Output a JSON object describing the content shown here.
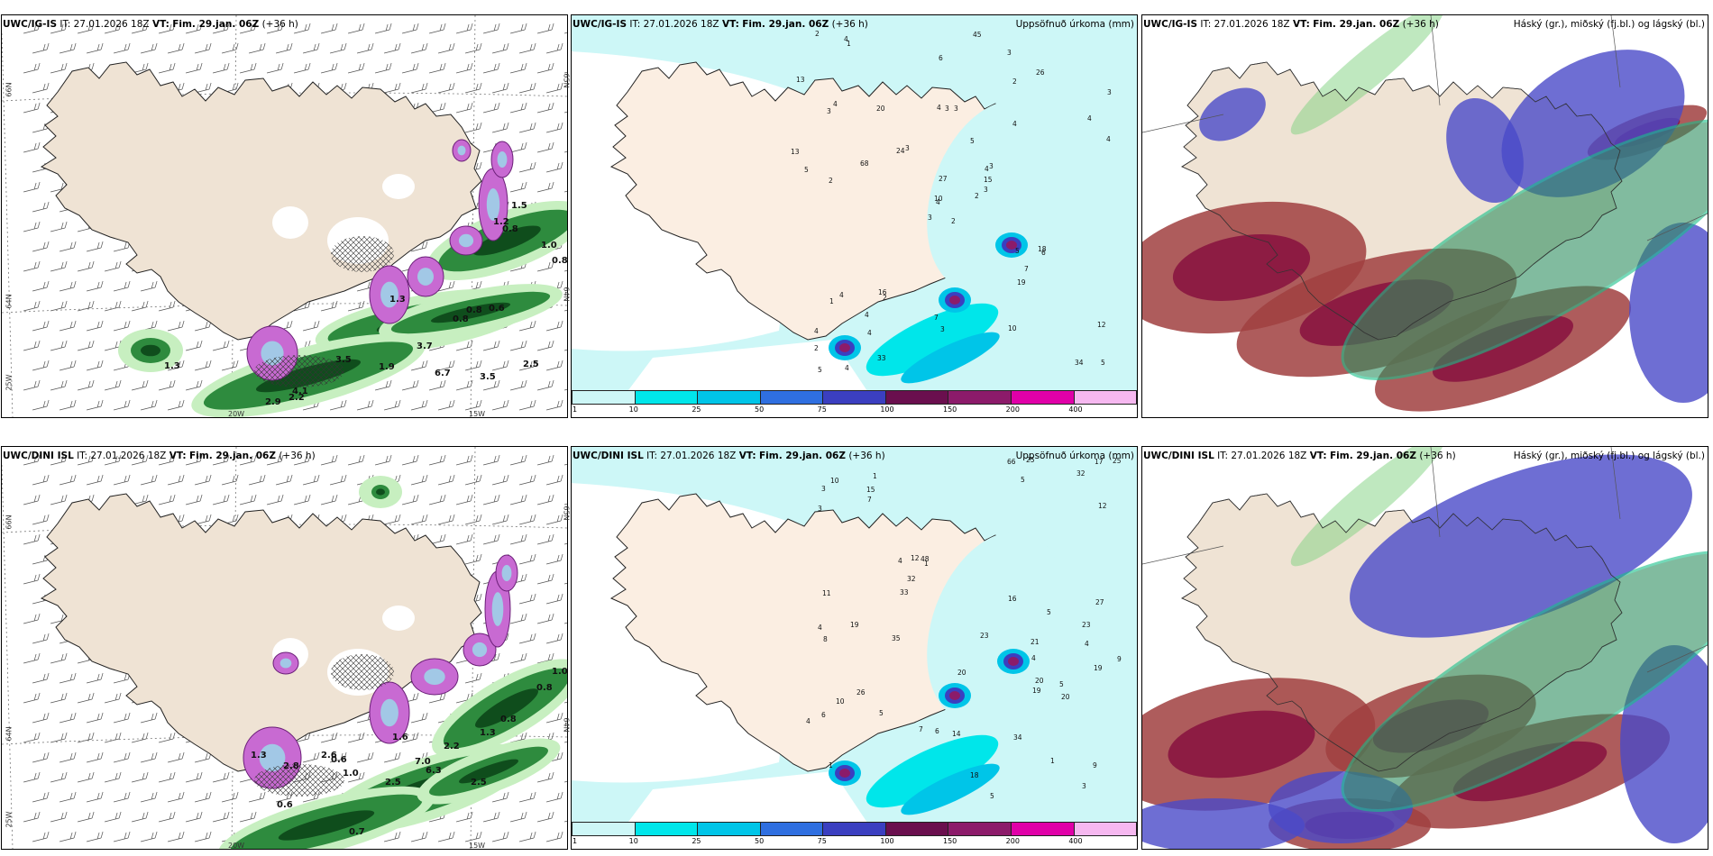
{
  "header_top_left": {
    "model": "UWC/IG-IS",
    "it": "IT: 27.01.2026 18Z",
    "vt_label": "VT:",
    "vt_value": "Fim. 29.jan. 06Z",
    "lead": "(+36 h)"
  },
  "header_top_mid": {
    "model": "UWC/IG-IS",
    "it": "IT: 27.01.2026 18Z",
    "vt_label": "VT:",
    "vt_value": "Fim. 29.jan. 06Z",
    "lead": "(+36 h)",
    "right": "Uppsöfnuð úrkoma (mm)"
  },
  "header_top_right": {
    "model": "UWC/IG-IS",
    "it": "IT: 27.01.2026 18Z",
    "vt_label": "VT:",
    "vt_value": "Fim. 29.jan. 06Z",
    "lead": "(+36 h)",
    "right": "Háský (gr.), miðský (fj.bl.) og lágský (bl.)"
  },
  "header_bot_left": {
    "model": "UWC/DINI ISL",
    "it": "IT: 27.01.2026 18Z",
    "vt_label": "VT:",
    "vt_value": "Fim. 29.jan. 06Z",
    "lead": "(+36 h)"
  },
  "header_bot_mid": {
    "model": "UWC/DINI ISL",
    "it": "IT: 27.01.2026 18Z",
    "vt_label": "VT:",
    "vt_value": "Fim. 29.jan. 06Z",
    "lead": "(+36 h)",
    "right": "Uppsöfnuð úrkoma (mm)"
  },
  "header_bot_right": {
    "model": "UWC/DINI ISL",
    "it": "IT: 27.01.2026 18Z",
    "vt_label": "VT:",
    "vt_value": "Fim. 29.jan. 06Z",
    "lead": "(+36 h)",
    "right": "Háský (gr.), miðský (fj.bl.) og lágský (bl.)"
  },
  "axis_labels": {
    "lat66": "66N",
    "lat64": "64N",
    "lon25": "25W",
    "lon20": "20W",
    "lon15": "15W",
    "lat65": "65N"
  },
  "legend": {
    "ticks": [
      "1",
      "10",
      "25",
      "50",
      "75",
      "100",
      "150",
      "200",
      "400"
    ],
    "colors": [
      "#cdf7f7",
      "#00e6ea",
      "#00c5e8",
      "#2f6fe0",
      "#3b3fc0",
      "#6a0f4e",
      "#8c1b6a",
      "#e000a8",
      "#f6b8f0"
    ]
  },
  "precip_top": [
    "2",
    "3",
    "4",
    "4",
    "4",
    "2",
    "3",
    "3",
    "2",
    "2",
    "1",
    "5",
    "2",
    "3",
    "3",
    "4",
    "4",
    "4",
    "5",
    "4",
    "3",
    "2",
    "4",
    "3",
    "3",
    "6",
    "4",
    "6",
    "5",
    "5",
    "4",
    "10",
    "7",
    "27",
    "20",
    "26",
    "16",
    "34",
    "12",
    "18",
    "45",
    "24",
    "68",
    "19",
    "33",
    "13",
    "15",
    "5",
    "3",
    "3",
    "1",
    "4",
    "13",
    "7",
    "10",
    "4",
    "4",
    "2"
  ],
  "precip_bot": [
    "4",
    "4",
    "1",
    "1",
    "1",
    "1",
    "6",
    "5",
    "4",
    "5",
    "3",
    "4",
    "3",
    "9",
    "7",
    "27",
    "20",
    "23",
    "48",
    "26",
    "25",
    "32",
    "33",
    "19",
    "66",
    "15",
    "20",
    "8",
    "7",
    "5",
    "18",
    "34",
    "32",
    "35",
    "23",
    "20",
    "19",
    "19",
    "14",
    "10",
    "12",
    "25",
    "3",
    "6",
    "5",
    "5",
    "4",
    "10",
    "16",
    "11",
    "9",
    "12",
    "17",
    "21"
  ],
  "dpm_top": [
    "1.5",
    "0.8",
    "1.0",
    "0.8",
    "0.6",
    "0.8",
    "0.8",
    "3.7",
    "3.5",
    "1.9",
    "6.7",
    "3.5",
    "2.5",
    "2.9",
    "2.2",
    "4.1",
    "1.3",
    "1.2",
    "1.3"
  ],
  "dpm_bot": [
    "1.0",
    "0.8",
    "0.8",
    "1.3",
    "0.6",
    "1.0",
    "6.3",
    "7.0",
    "2.5",
    "2.5",
    "2.2",
    "0.6",
    "0.7",
    "1.3",
    "2.6",
    "1.6",
    "2.8"
  ]
}
